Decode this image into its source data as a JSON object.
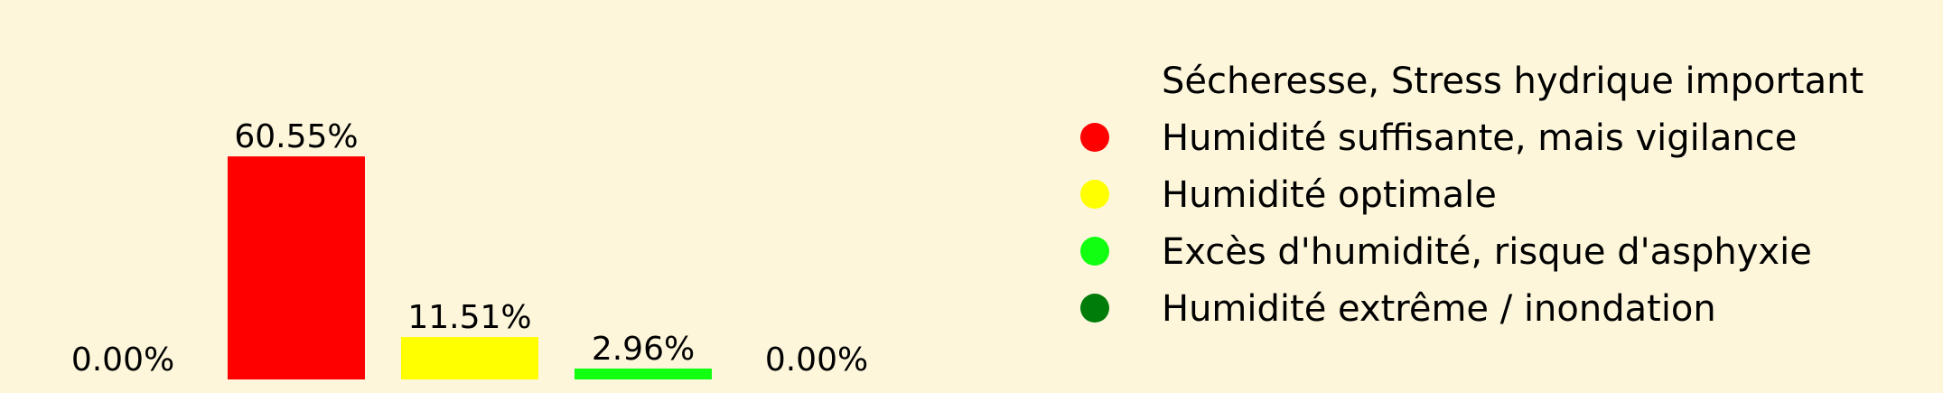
{
  "chart_data": {
    "type": "bar",
    "categories": [
      "Sécheresse, Stress hydrique important",
      "Humidité suffisante, mais vigilance",
      "Humidité optimale",
      "Excès d'humidité, risque d'asphyxie",
      "Humidité extrême / inondation"
    ],
    "values": [
      0.0,
      60.55,
      11.51,
      2.96,
      0.0
    ],
    "data_labels": [
      "0.00%",
      "60.55%",
      "11.51%",
      "2.96%",
      "0.00%"
    ],
    "colors": [
      "#ff0000",
      "#ff0000",
      "#ffff00",
      "#11ff11",
      "#007c0a"
    ],
    "ylim": [
      0,
      65
    ],
    "grid": false,
    "legend_placement": "right"
  },
  "legend": {
    "items": [
      {
        "label": "Sécheresse, Stress hydrique important",
        "color": ""
      },
      {
        "label": "Humidité suffisante, mais vigilance",
        "color": "#ff0000"
      },
      {
        "label": "Humidité optimale",
        "color": "#ffff00"
      },
      {
        "label": "Excès d'humidité, risque d'asphyxie",
        "color": "#11ff11"
      },
      {
        "label": "Humidité extrême / inondation",
        "color": "#007c0a"
      }
    ]
  },
  "colors": {
    "background": "#fdf6db",
    "text": "#000000"
  }
}
